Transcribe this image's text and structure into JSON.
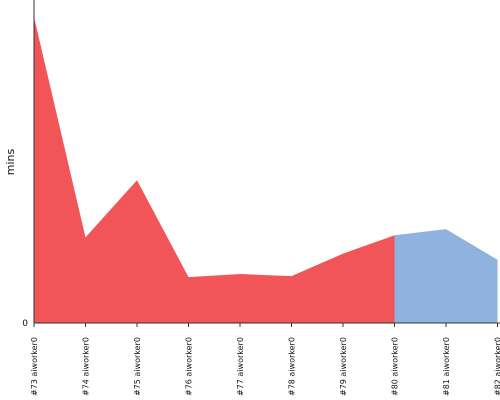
{
  "chart_data": {
    "type": "area",
    "ylabel": "mins",
    "y_tick_labels": [
      "0"
    ],
    "categories": [
      "#73 aiworker0",
      "#74 aiworker0",
      "#75 aiworker0",
      "#76 aiworker0",
      "#77 aiworker0",
      "#78 aiworker0",
      "#79 aiworker0",
      "#80 aiworker0",
      "#81 aiworker0",
      "#82 aiworker0"
    ],
    "ylim": [
      0,
      30
    ],
    "series": [
      {
        "values": [
          30,
          8.4,
          14.0,
          4.5,
          4.8,
          4.6,
          6.8,
          8.6,
          null,
          null
        ],
        "color": "#f25557"
      },
      {
        "values": [
          null,
          null,
          null,
          null,
          null,
          null,
          null,
          8.6,
          9.2,
          6.2
        ],
        "color": "#8fb3de"
      }
    ],
    "grid": false
  }
}
